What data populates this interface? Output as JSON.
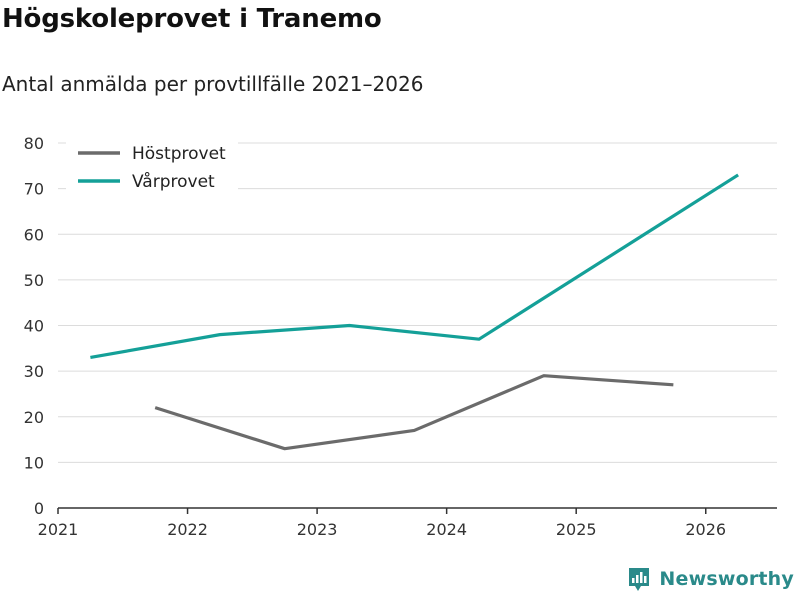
{
  "title": "Högskoleprovet i Tranemo",
  "subtitle": "Antal anmälda per provtillfälle 2021–2026",
  "brand": "Newsworthy",
  "chart_data": {
    "type": "line",
    "ylim": [
      0,
      80
    ],
    "yticks": [
      0,
      10,
      20,
      30,
      40,
      50,
      60,
      70,
      80
    ],
    "xlim": [
      2021,
      2026.55
    ],
    "xticks": [
      2021,
      2022,
      2023,
      2024,
      2025,
      2026
    ],
    "xtick_labels": [
      "2021",
      "2022",
      "2023",
      "2024",
      "2025",
      "2026"
    ],
    "legend_position": "top-left",
    "grid": true,
    "series": [
      {
        "name": "Höstprovet",
        "color": "#6b6b6b",
        "x": [
          2021.75,
          2022.75,
          2023.75,
          2024.75,
          2025.75
        ],
        "values": [
          22,
          13,
          17,
          29,
          27
        ]
      },
      {
        "name": "Vårprovet",
        "color": "#14a098",
        "x": [
          2021.25,
          2022.25,
          2023.25,
          2024.25,
          2026.25
        ],
        "values": [
          33,
          38,
          40,
          37,
          73
        ]
      }
    ]
  }
}
